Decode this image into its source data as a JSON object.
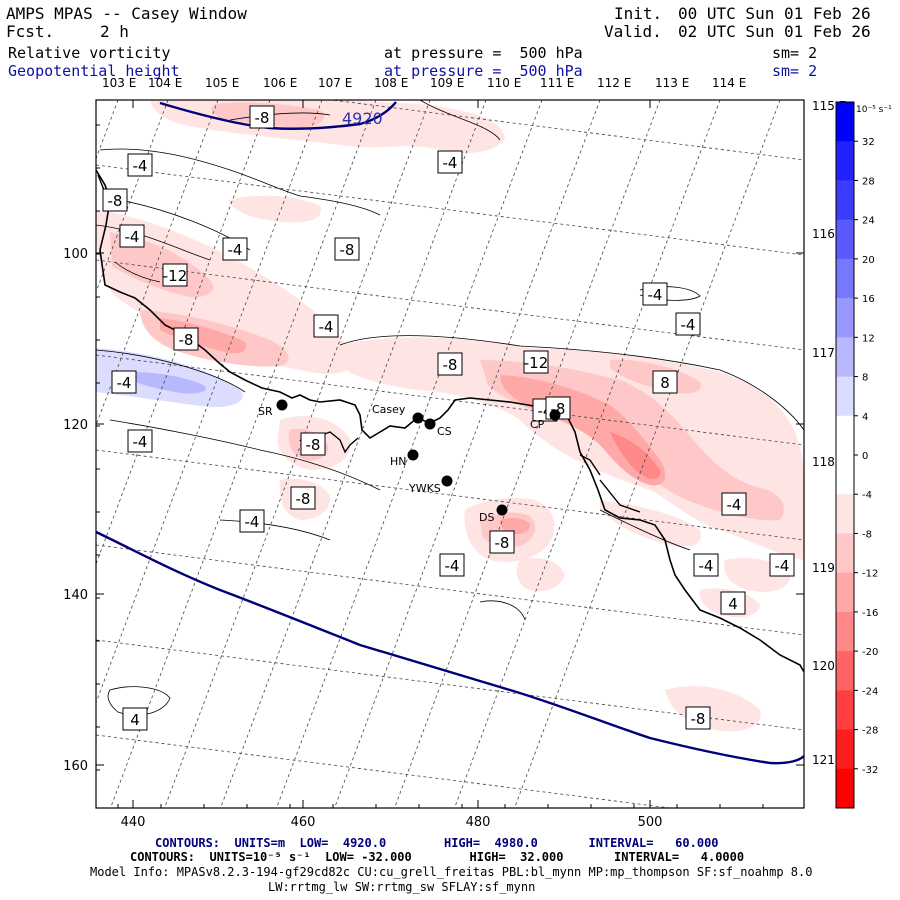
{
  "header": {
    "title": "AMPS MPAS -- Casey Window",
    "fcst_label": "Fcst.",
    "fcst_value": "2 h",
    "init_label": "Init.",
    "init_value": "00 UTC Sun 01 Feb 26",
    "valid_label": "Valid.",
    "valid_value": "02 UTC Sun 01 Feb 26",
    "field1_name": "Relative vorticity",
    "field1_level": "at pressure =  500 hPa",
    "field1_sm": "sm= 2",
    "field2_name": "Geopotential height",
    "field2_level": "at pressure =  500 hPa",
    "field2_sm": "sm= 2"
  },
  "map": {
    "top_lon_labels": [
      "103 E",
      "104 E",
      "105 E",
      "106 E",
      "107 E",
      "108 E",
      "109 E",
      "110 E",
      "111 E",
      "112 E",
      "113 E",
      "114 E"
    ],
    "right_lon_labels": [
      "115 E",
      "116 E",
      "117 E",
      "118 E",
      "119 E",
      "120 E",
      "121 E"
    ],
    "x_tick_labels": [
      "440",
      "460",
      "480",
      "500"
    ],
    "y_tick_labels": [
      "100",
      "120",
      "140",
      "160"
    ],
    "stations": [
      {
        "name": "SR"
      },
      {
        "name": "Casey"
      },
      {
        "name": "CS"
      },
      {
        "name": "HN"
      },
      {
        "name": "YWKS"
      },
      {
        "name": "DS"
      },
      {
        "name": "CP"
      }
    ],
    "height_contour_labels": [
      "4920"
    ],
    "vorticity_contour_labels": [
      "-8",
      "-4",
      "-4",
      "-8",
      "-4",
      "-4",
      "-8",
      "-12",
      "-4",
      "-4",
      "-4",
      "-8",
      "-8",
      "-12",
      "8",
      "-4",
      "-4",
      "-8",
      "-4",
      "-8",
      "-4",
      "-8",
      "-4",
      "-4",
      "-4",
      "-4",
      "4",
      "4",
      "-8",
      "-8"
    ]
  },
  "colorbar": {
    "units": "10⁻⁵ s⁻¹",
    "labels": [
      "32",
      "28",
      "24",
      "20",
      "16",
      "12",
      "8",
      "4",
      "0",
      "-4",
      "-8",
      "-12",
      "-16",
      "-20",
      "-24",
      "-28",
      "-32"
    ],
    "colors": [
      "#0000ff",
      "#2222ff",
      "#3c3cff",
      "#5a5aff",
      "#7878ff",
      "#9898ff",
      "#b8b8ff",
      "#dcdcff",
      "#ffffff",
      "#ffffff",
      "#ffe4e4",
      "#ffc8c8",
      "#ffa8a8",
      "#ff8888",
      "#ff6464",
      "#ff4040",
      "#ff1e1e",
      "#ff0000"
    ]
  },
  "footer": {
    "line1": "CONTOURS:  UNITS=m  LOW=  4920.0        HIGH=  4980.0       INTERVAL=   60.000",
    "line2": "CONTOURS:  UNITS=10⁻⁵ s⁻¹  LOW= -32.000        HIGH=  32.000       INTERVAL=   4.0000",
    "line3": "Model Info: MPASv8.2.3-194-gf29cd82c CU:cu_grell_freitas PBL:bl_mynn MP:mp_thompson SF:sf_noahmp 8.0",
    "line4": "LW:rrtmg_lw SW:rrtmg_sw SFLAY:sf_mynn"
  }
}
